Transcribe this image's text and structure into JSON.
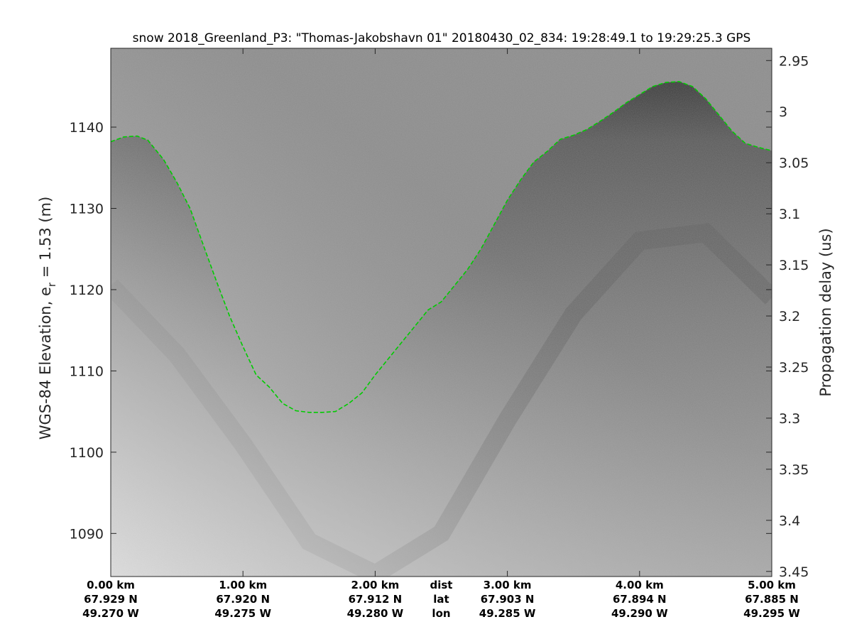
{
  "chart_data": {
    "type": "heatmap",
    "title": "snow 2018_Greenland_P3: \"Thomas-Jakobshavn 01\"  20180430_02_834: 19:28:49.1 to 19:29:25.3 GPS",
    "ylabel_left_main": "WGS-84 Elevation, e",
    "ylabel_left_sub": "r",
    "ylabel_left_tail": " = 1.53 (m)",
    "ylabel_right": "Propagation delay (us)",
    "colormap": "gray",
    "surface_color": "#00cc00",
    "ylim_left": [
      1084.7,
      1149.7
    ],
    "yticks_left": [
      1090,
      1100,
      1110,
      1120,
      1130,
      1140
    ],
    "ylim_right": [
      2.938,
      3.455
    ],
    "yticks_right": [
      "2.95",
      "3",
      "3.05",
      "3.1",
      "3.15",
      "3.2",
      "3.25",
      "3.3",
      "3.35",
      "3.4",
      "3.45"
    ],
    "xlim_km": [
      0,
      5.0
    ],
    "x_columns": [
      {
        "dist": "0.00 km",
        "lat": "67.929 N",
        "lon": "49.270 W"
      },
      {
        "dist": "1.00 km",
        "lat": "67.920 N",
        "lon": "49.275 W"
      },
      {
        "dist": "2.00 km",
        "lat": "67.912 N",
        "lon": "49.280 W"
      },
      {
        "dist": "3.00 km",
        "lat": "67.903 N",
        "lon": "49.285 W"
      },
      {
        "dist": "4.00 km",
        "lat": "67.894 N",
        "lon": "49.290 W"
      },
      {
        "dist": "5.00 km",
        "lat": "67.885 N",
        "lon": "49.295 W"
      }
    ],
    "x_row_labels": [
      "dist",
      "lat",
      "lon"
    ],
    "surface_line": {
      "name": "surface",
      "x_km": [
        0,
        0.1,
        0.2,
        0.28,
        0.4,
        0.5,
        0.6,
        0.7,
        0.8,
        0.9,
        1.0,
        1.1,
        1.2,
        1.3,
        1.4,
        1.5,
        1.6,
        1.7,
        1.8,
        1.9,
        2.0,
        2.1,
        2.2,
        2.3,
        2.4,
        2.5,
        2.6,
        2.7,
        2.8,
        2.9,
        3.0,
        3.1,
        3.2,
        3.3,
        3.4,
        3.5,
        3.6,
        3.7,
        3.8,
        3.9,
        4.0,
        4.1,
        4.2,
        4.3,
        4.4,
        4.5,
        4.6,
        4.7,
        4.8,
        4.9,
        5.0
      ],
      "elev_m": [
        1138.2,
        1138.8,
        1138.9,
        1138.4,
        1136.0,
        1133.2,
        1130.0,
        1125.5,
        1121.0,
        1116.7,
        1113.0,
        1109.5,
        1108.0,
        1106.0,
        1105.1,
        1104.9,
        1104.9,
        1105.0,
        1106.0,
        1107.3,
        1109.5,
        1111.5,
        1113.5,
        1115.5,
        1117.5,
        1118.5,
        1120.5,
        1122.5,
        1125.0,
        1128.0,
        1131.0,
        1133.5,
        1135.7,
        1137.0,
        1138.5,
        1139.0,
        1139.7,
        1140.7,
        1141.8,
        1143.0,
        1144.0,
        1145.0,
        1145.5,
        1145.6,
        1145.0,
        1143.5,
        1141.5,
        1139.5,
        1138.0,
        1137.5,
        1137.1
      ]
    },
    "internal_layer": {
      "x_km": [
        0.0,
        0.5,
        1.0,
        1.5,
        2.0,
        2.5,
        3.0,
        3.5,
        4.0,
        4.5,
        5.0
      ],
      "elev_m": [
        1120.5,
        1112.0,
        1101.0,
        1089.0,
        1085.0,
        1090.0,
        1104.0,
        1117.0,
        1126.0,
        1127.0,
        1119.0
      ]
    }
  }
}
